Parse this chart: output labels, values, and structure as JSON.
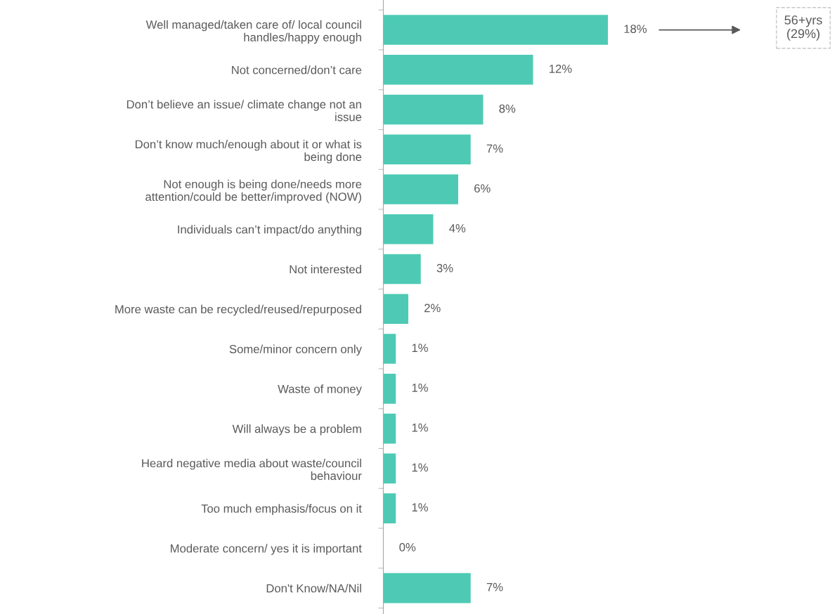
{
  "chart_data": {
    "type": "bar",
    "orientation": "horizontal",
    "color": "#4ecab4",
    "categories": [
      "Well managed/taken care of/ local council\nhandles/happy enough",
      "Not concerned/don’t care",
      "Don’t believe an issue/ climate change not an\nissue",
      "Don’t know much/enough about it or what is\nbeing done",
      "Not enough is being done/needs more\nattention/could be better/improved (NOW)",
      "Individuals can’t impact/do anything",
      "Not interested",
      "More waste can be recycled/reused/repurposed",
      "Some/minor concern only",
      "Waste of money",
      "Will always be a problem",
      "Heard negative media about waste/council\nbehaviour",
      "Too much emphasis/focus on it",
      "Moderate concern/ yes it is important",
      "Don't Know/NA/Nil"
    ],
    "values": [
      18,
      12,
      8,
      7,
      6,
      4,
      3,
      2,
      1,
      1,
      1,
      1,
      1,
      0,
      7
    ],
    "value_labels": [
      "18%",
      "12%",
      "8%",
      "7%",
      "6%",
      "4%",
      "3%",
      "2%",
      "1%",
      "1%",
      "1%",
      "1%",
      "1%",
      "0%",
      "7%"
    ],
    "annotations": [
      "56+yrs\n(29%)"
    ]
  }
}
